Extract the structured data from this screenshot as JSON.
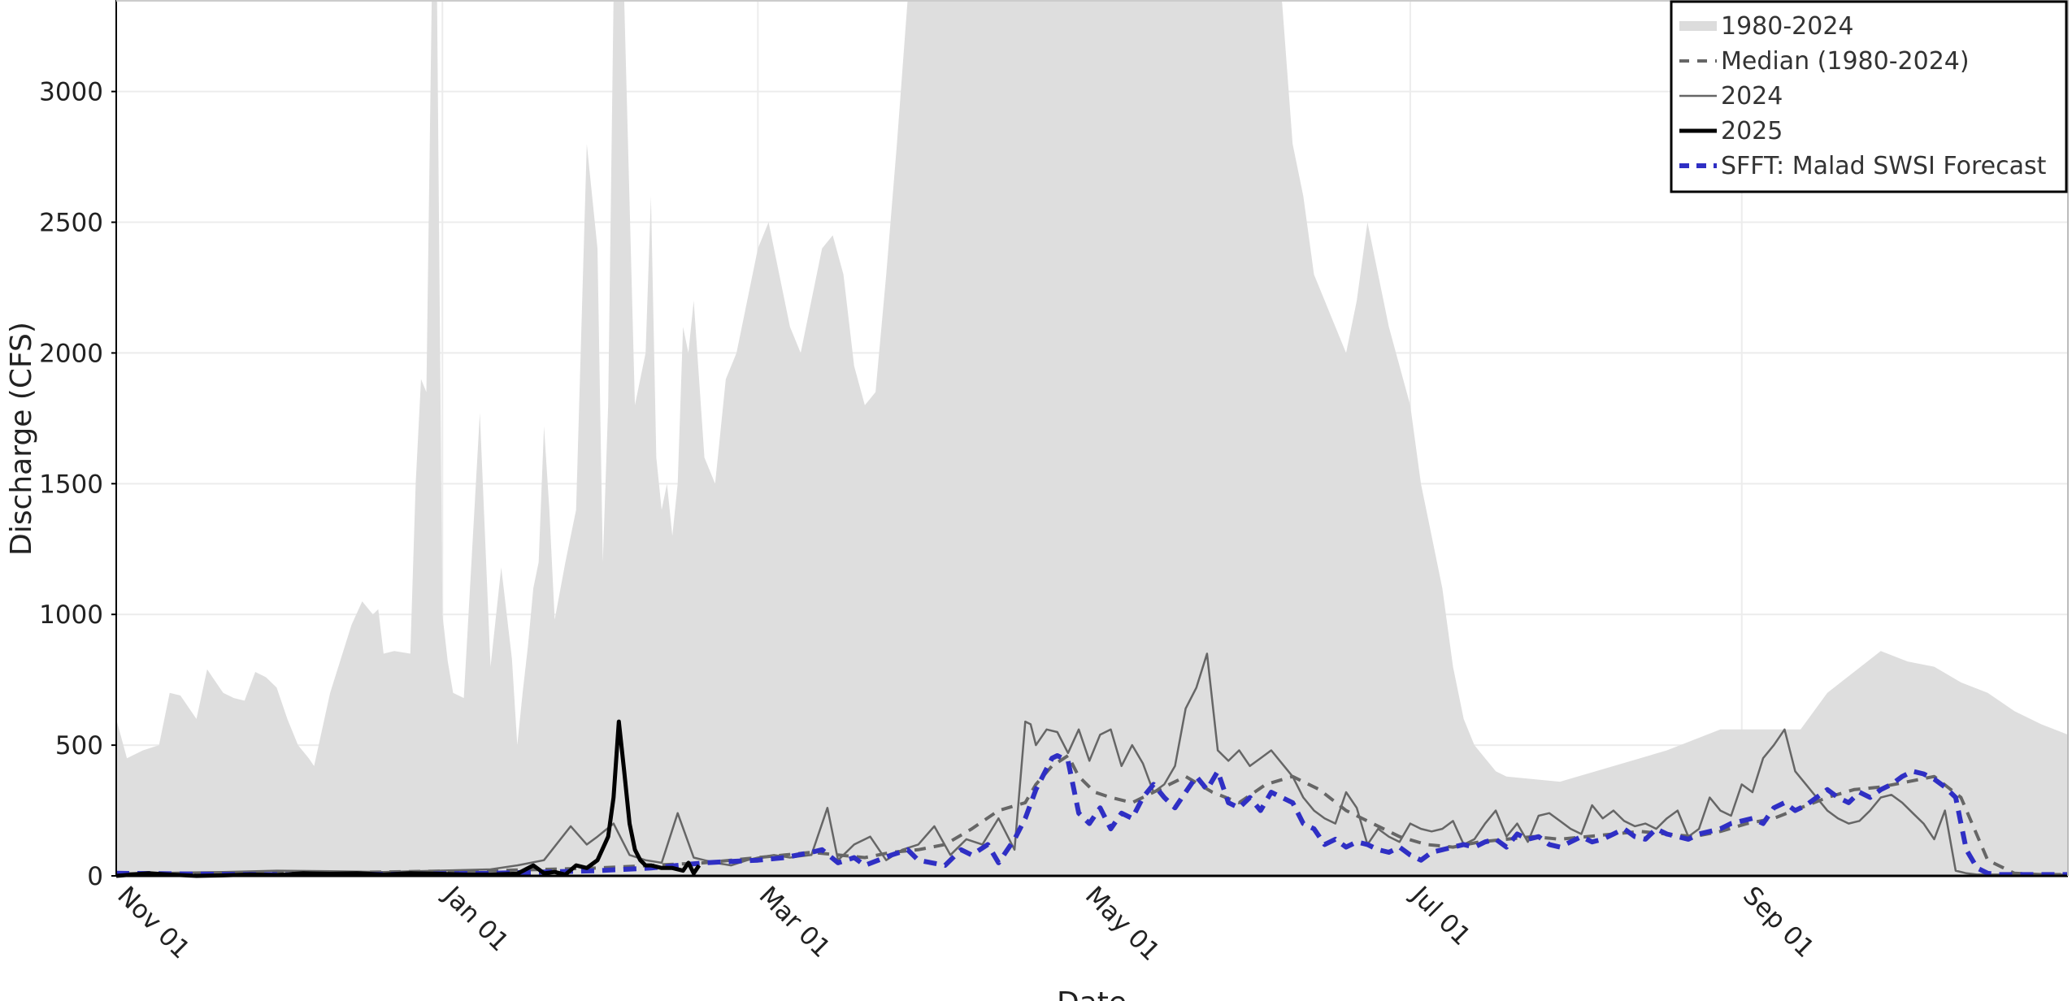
{
  "chart_data": {
    "type": "line",
    "xlabel": "Date",
    "ylabel": "Discharge (CFS)",
    "ylim": [
      0,
      3350
    ],
    "x_ticks": [
      "Nov 01",
      "Jan 01",
      "Mar 01",
      "May 01",
      "Jul 01",
      "Sep 01"
    ],
    "x_tick_days": [
      0,
      61,
      120,
      181,
      242,
      304
    ],
    "y_ticks": [
      0,
      500,
      1000,
      1500,
      2000,
      2500,
      3000
    ],
    "y_tick_labels": [
      "0",
      "500",
      "1000",
      "1500",
      "2000",
      "2500",
      "3000"
    ],
    "grid": true,
    "legend_position": "top-right",
    "legend": [
      {
        "label": "1980-2024",
        "style": "band"
      },
      {
        "label": "Median (1980-2024)",
        "style": "dashed"
      },
      {
        "label": "2024",
        "style": "thin"
      },
      {
        "label": "2025",
        "style": "thick"
      },
      {
        "label": "SFFT: Malad SWSI Forecast",
        "style": "blue-dashed"
      }
    ],
    "series": [
      {
        "name": "1980-2024",
        "kind": "range-band",
        "x_day": [
          0,
          2,
          5,
          8,
          10,
          12,
          15,
          17,
          18,
          20,
          22,
          24,
          26,
          28,
          30,
          32,
          34,
          36,
          37,
          40,
          44,
          46,
          48,
          49,
          50,
          52,
          55,
          56,
          57,
          58,
          59,
          60,
          61,
          62,
          63,
          65,
          68,
          70,
          72,
          74,
          75,
          76,
          77,
          78,
          79,
          80,
          81,
          82,
          84,
          86,
          88,
          90,
          91,
          92,
          93,
          95,
          97,
          99,
          100,
          101,
          102,
          103,
          104,
          105,
          106,
          107,
          108,
          110,
          112,
          114,
          116,
          118,
          120,
          122,
          124,
          126,
          128,
          130,
          132,
          134,
          136,
          138,
          140,
          142,
          144,
          146,
          148,
          150,
          152,
          154,
          156,
          158,
          160,
          162,
          164,
          166,
          168,
          170,
          172,
          174,
          176,
          178,
          180,
          182,
          184,
          186,
          188,
          190,
          192,
          194,
          196,
          198,
          200,
          202,
          204,
          206,
          208,
          210,
          212,
          214,
          216,
          218,
          220,
          222,
          224,
          226,
          228,
          230,
          232,
          234,
          236,
          238,
          240,
          242,
          244,
          246,
          248,
          250,
          252,
          254,
          256,
          258,
          260,
          270,
          280,
          290,
          300,
          305,
          310,
          315,
          320,
          325,
          330,
          335,
          340,
          345,
          350,
          355,
          360,
          365
        ],
        "max": [
          600,
          450,
          480,
          500,
          700,
          690,
          600,
          790,
          760,
          700,
          680,
          670,
          780,
          760,
          720,
          600,
          500,
          450,
          420,
          700,
          960,
          1050,
          1000,
          1020,
          850,
          860,
          850,
          1500,
          1900,
          1850,
          3350,
          3350,
          1000,
          820,
          700,
          680,
          1770,
          800,
          1180,
          830,
          500,
          700,
          880,
          1100,
          1200,
          1720,
          1400,
          980,
          1200,
          1400,
          2800,
          2400,
          1200,
          1800,
          3350,
          3350,
          1800,
          2000,
          2600,
          1600,
          1400,
          1500,
          1300,
          1500,
          2100,
          2000,
          2200,
          1600,
          1500,
          1900,
          2000,
          2200,
          2400,
          2500,
          2300,
          2100,
          2000,
          2200,
          2400,
          2450,
          2300,
          1950,
          1800,
          1850,
          2300,
          2800,
          3350,
          3350,
          3350,
          3350,
          3350,
          3350,
          3350,
          3350,
          3350,
          3350,
          3350,
          3350,
          3350,
          3350,
          3350,
          3350,
          3350,
          3350,
          3350,
          3350,
          3350,
          3350,
          3350,
          3350,
          3350,
          3350,
          3350,
          3350,
          3350,
          3350,
          3350,
          3350,
          3350,
          3350,
          3350,
          3350,
          2800,
          2600,
          2300,
          2200,
          2100,
          2000,
          2200,
          2500,
          2300,
          2100,
          1950,
          1800,
          1500,
          1300,
          1100,
          800,
          600,
          500,
          450,
          400,
          380,
          360,
          420,
          480,
          560,
          560,
          560,
          560,
          700,
          780,
          860,
          820,
          800,
          740,
          700,
          630,
          580,
          540,
          500,
          520,
          640
        ],
        "min": [
          0,
          0,
          0,
          0,
          0,
          0,
          0,
          0,
          0,
          0,
          0,
          0,
          0,
          0,
          0,
          0,
          0,
          0,
          0,
          0,
          0,
          0,
          0,
          0,
          0,
          0,
          0,
          0,
          0,
          0,
          0,
          0,
          0,
          0,
          0,
          0,
          0,
          0,
          0,
          0,
          0,
          0,
          0,
          0,
          0,
          0,
          0,
          0,
          0,
          0,
          0,
          0,
          0,
          0,
          0,
          0,
          0,
          0,
          0,
          0,
          0,
          0,
          0,
          0,
          0,
          0,
          0,
          0,
          0,
          0,
          0,
          0,
          0,
          0,
          0,
          0,
          0,
          0,
          0,
          0,
          0,
          0,
          0,
          0,
          0,
          0,
          0,
          0,
          0,
          0,
          0,
          0,
          0,
          0,
          0,
          0,
          0,
          0,
          0,
          0,
          0,
          0,
          0,
          0,
          0,
          0,
          0,
          0,
          0,
          0,
          0,
          0,
          0,
          0,
          0,
          0,
          0,
          0,
          0,
          0,
          0,
          0,
          0,
          0,
          0,
          0,
          0,
          0,
          0,
          0,
          0,
          0,
          0,
          0,
          0,
          0,
          0,
          0,
          0,
          0,
          0,
          0,
          0,
          0,
          0,
          0,
          0,
          0,
          0,
          0,
          0,
          0,
          0,
          0,
          0,
          0,
          0,
          0,
          0,
          0
        ]
      },
      {
        "name": "Median (1980-2024)",
        "x_day": [
          0,
          10,
          20,
          30,
          40,
          50,
          60,
          70,
          80,
          90,
          100,
          110,
          120,
          125,
          130,
          135,
          140,
          145,
          150,
          155,
          160,
          165,
          170,
          172,
          175,
          178,
          180,
          183,
          186,
          190,
          195,
          200,
          205,
          210,
          215,
          220,
          225,
          230,
          235,
          240,
          245,
          250,
          255,
          260,
          265,
          270,
          275,
          280,
          285,
          290,
          295,
          300,
          305,
          310,
          315,
          320,
          325,
          330,
          335,
          340,
          345,
          350,
          355,
          360,
          365
        ],
        "y": [
          5,
          5,
          8,
          10,
          12,
          15,
          18,
          20,
          25,
          30,
          40,
          50,
          70,
          80,
          90,
          80,
          70,
          90,
          100,
          120,
          180,
          250,
          280,
          350,
          420,
          460,
          380,
          320,
          300,
          280,
          330,
          380,
          320,
          280,
          350,
          380,
          330,
          250,
          200,
          150,
          120,
          110,
          130,
          140,
          150,
          140,
          150,
          160,
          170,
          160,
          150,
          170,
          200,
          220,
          260,
          300,
          330,
          340,
          360,
          380,
          300,
          60,
          10,
          5,
          5
        ]
      },
      {
        "name": "2024",
        "x_day": [
          0,
          10,
          20,
          30,
          40,
          50,
          60,
          70,
          75,
          80,
          85,
          88,
          90,
          93,
          96,
          99,
          102,
          105,
          108,
          110,
          112,
          115,
          118,
          120,
          123,
          126,
          130,
          133,
          135,
          138,
          141,
          144,
          147,
          150,
          153,
          156,
          159,
          162,
          165,
          168,
          170,
          171,
          172,
          174,
          176,
          178,
          180,
          182,
          184,
          186,
          188,
          190,
          192,
          194,
          196,
          198,
          200,
          202,
          204,
          206,
          208,
          210,
          212,
          214,
          216,
          218,
          220,
          222,
          224,
          226,
          228,
          230,
          232,
          234,
          236,
          238,
          240,
          242,
          244,
          246,
          248,
          250,
          252,
          254,
          256,
          258,
          260,
          262,
          264,
          266,
          268,
          270,
          272,
          274,
          276,
          278,
          280,
          282,
          284,
          286,
          288,
          290,
          292,
          294,
          296,
          298,
          300,
          302,
          304,
          306,
          308,
          310,
          312,
          314,
          316,
          318,
          320,
          322,
          324,
          326,
          328,
          330,
          332,
          334,
          336,
          338,
          340,
          342,
          344,
          346,
          348,
          350,
          352,
          354,
          356,
          358,
          360,
          365
        ],
        "y": [
          10,
          12,
          15,
          20,
          18,
          15,
          20,
          25,
          40,
          60,
          190,
          120,
          150,
          200,
          80,
          60,
          50,
          240,
          70,
          60,
          50,
          40,
          60,
          70,
          80,
          70,
          80,
          260,
          60,
          120,
          150,
          60,
          100,
          120,
          190,
          80,
          140,
          120,
          220,
          100,
          590,
          580,
          500,
          560,
          550,
          470,
          560,
          440,
          540,
          560,
          420,
          500,
          430,
          320,
          350,
          420,
          640,
          720,
          850,
          480,
          440,
          480,
          420,
          450,
          480,
          430,
          380,
          300,
          250,
          220,
          200,
          320,
          260,
          120,
          180,
          150,
          130,
          200,
          180,
          170,
          180,
          210,
          120,
          140,
          200,
          250,
          150,
          200,
          130,
          230,
          240,
          210,
          180,
          160,
          270,
          220,
          250,
          210,
          190,
          200,
          180,
          220,
          250,
          150,
          180,
          300,
          250,
          230,
          350,
          320,
          450,
          500,
          560,
          400,
          350,
          300,
          250,
          220,
          200,
          210,
          250,
          300,
          310,
          280,
          240,
          200,
          140,
          250,
          20,
          10,
          5,
          5,
          5,
          5,
          5,
          5,
          5,
          5
        ]
      },
      {
        "name": "2025",
        "x_day": [
          0,
          3,
          6,
          10,
          15,
          20,
          25,
          30,
          35,
          40,
          45,
          50,
          55,
          60,
          65,
          70,
          75,
          78,
          80,
          82,
          84,
          86,
          88,
          90,
          92,
          93,
          94,
          95,
          96,
          97,
          98,
          99,
          100,
          102,
          104,
          106,
          107,
          108,
          109
        ],
        "y": [
          0,
          5,
          10,
          5,
          0,
          2,
          5,
          3,
          10,
          8,
          10,
          5,
          10,
          8,
          5,
          5,
          8,
          40,
          10,
          15,
          5,
          40,
          30,
          60,
          150,
          300,
          590,
          400,
          200,
          100,
          60,
          40,
          40,
          30,
          30,
          20,
          50,
          10,
          40
        ]
      },
      {
        "name": "SFFT: Malad SWSI Forecast",
        "x_day": [
          0,
          10,
          20,
          30,
          40,
          50,
          60,
          70,
          80,
          90,
          95,
          100,
          105,
          110,
          115,
          120,
          125,
          130,
          132,
          135,
          138,
          140,
          145,
          148,
          150,
          155,
          158,
          160,
          163,
          165,
          168,
          170,
          172,
          175,
          176,
          178,
          180,
          182,
          184,
          186,
          188,
          190,
          192,
          194,
          196,
          198,
          200,
          202,
          204,
          206,
          208,
          210,
          212,
          214,
          216,
          218,
          220,
          222,
          224,
          226,
          228,
          230,
          232,
          234,
          236,
          238,
          240,
          242,
          244,
          246,
          248,
          250,
          252,
          254,
          256,
          258,
          260,
          262,
          264,
          266,
          268,
          270,
          272,
          274,
          276,
          278,
          280,
          282,
          284,
          286,
          288,
          290,
          292,
          294,
          296,
          298,
          300,
          302,
          304,
          306,
          308,
          310,
          312,
          314,
          316,
          318,
          320,
          322,
          324,
          326,
          328,
          330,
          332,
          334,
          336,
          338,
          340,
          342,
          344,
          346,
          348,
          350,
          352,
          354,
          356,
          358,
          360,
          365
        ],
        "y": [
          10,
          8,
          6,
          5,
          5,
          6,
          8,
          10,
          15,
          20,
          25,
          30,
          40,
          50,
          55,
          60,
          70,
          90,
          100,
          50,
          70,
          40,
          80,
          100,
          60,
          40,
          100,
          80,
          120,
          50,
          140,
          220,
          330,
          450,
          460,
          440,
          240,
          200,
          260,
          180,
          240,
          220,
          300,
          350,
          300,
          260,
          320,
          380,
          330,
          400,
          280,
          260,
          300,
          250,
          320,
          300,
          280,
          200,
          180,
          120,
          140,
          110,
          130,
          120,
          100,
          90,
          110,
          80,
          60,
          90,
          100,
          110,
          120,
          110,
          130,
          140,
          110,
          160,
          140,
          150,
          120,
          110,
          130,
          150,
          130,
          140,
          160,
          180,
          150,
          140,
          180,
          160,
          150,
          140,
          160,
          170,
          180,
          200,
          210,
          220,
          200,
          260,
          280,
          250,
          270,
          300,
          330,
          300,
          280,
          320,
          300,
          330,
          350,
          380,
          400,
          390,
          370,
          340,
          300,
          100,
          30,
          10,
          5,
          5,
          5,
          5,
          5,
          5
        ]
      }
    ]
  }
}
